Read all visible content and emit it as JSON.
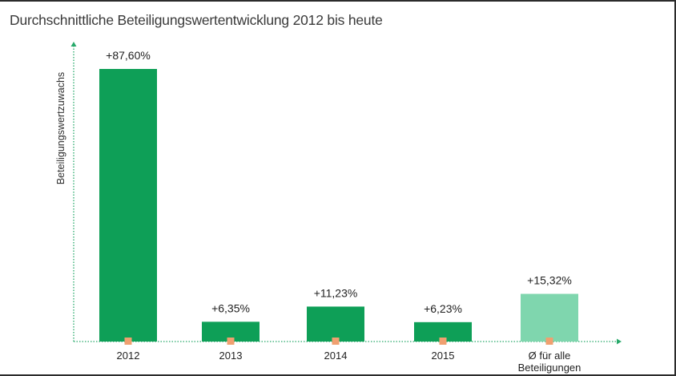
{
  "chart_data": {
    "type": "bar",
    "title": "Durchschnittliche Beteiligungswertentwicklung 2012 bis heute",
    "xlabel": "",
    "ylabel": "Beteiligungswertzuwachs",
    "ylim": [
      0,
      100
    ],
    "grid": false,
    "categories": [
      "2012",
      "2013",
      "2014",
      "2015",
      "Ø für alle\nBeteiligungen"
    ],
    "values": [
      87.6,
      6.35,
      11.23,
      6.23,
      15.32
    ],
    "value_labels": [
      "+87,60%",
      "+6,35%",
      "+11,23%",
      "+6,23%",
      "+15,32%"
    ],
    "colors": {
      "bar": "#0e9f57",
      "average_bar": "#7fd6ae",
      "axis": "#27a96a",
      "marker": "#f0a070"
    }
  }
}
